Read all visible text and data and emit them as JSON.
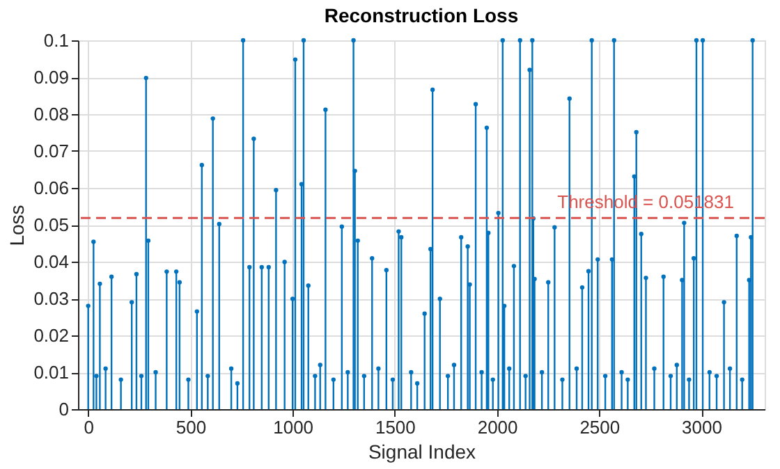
{
  "chart_data": {
    "type": "lollipop",
    "title": "Reconstruction Loss",
    "xlabel": "Signal Index",
    "ylabel": "Loss",
    "x": [
      0,
      26,
      40,
      57,
      85,
      114,
      160,
      213,
      236,
      260,
      283,
      294,
      330,
      384,
      431,
      447,
      490,
      532,
      556,
      585,
      610,
      641,
      700,
      730,
      758,
      789,
      810,
      849,
      883,
      919,
      961,
      1000,
      1013,
      1044,
      1054,
      1077,
      1110,
      1135,
      1161,
      1200,
      1241,
      1270,
      1298,
      1305,
      1319,
      1350,
      1389,
      1420,
      1459,
      1490,
      1519,
      1532,
      1580,
      1610,
      1646,
      1675,
      1685,
      1721,
      1760,
      1790,
      1825,
      1857,
      1867,
      1896,
      1925,
      1950,
      1958,
      1980,
      2007,
      2028,
      2036,
      2060,
      2083,
      2113,
      2140,
      2160,
      2173,
      2178,
      2184,
      2220,
      2251,
      2282,
      2320,
      2355,
      2390,
      2417,
      2448,
      2464,
      2493,
      2530,
      2563,
      2573,
      2610,
      2640,
      2672,
      2682,
      2706,
      2729,
      2770,
      2815,
      2850,
      2880,
      2906,
      2916,
      2940,
      2963,
      2976,
      3007,
      3040,
      3075,
      3111,
      3140,
      3173,
      3200,
      3234,
      3243,
      3251
    ],
    "series": [
      {
        "color": "#0072bd",
        "values": [
          0.028,
          0.0454,
          0.009,
          0.034,
          0.011,
          0.0359,
          0.008,
          0.029,
          0.0366,
          0.009,
          0.0898,
          0.0457,
          0.01,
          0.0373,
          0.0373,
          0.0344,
          0.008,
          0.0265,
          0.0662,
          0.009,
          0.0788,
          0.0502,
          0.011,
          0.007,
          0.1,
          0.0385,
          0.0733,
          0.0385,
          0.0385,
          0.0594,
          0.0399,
          0.0299,
          0.0948,
          0.061,
          0.1,
          0.0335,
          0.009,
          0.012,
          0.0812,
          0.008,
          0.0495,
          0.01,
          0.1,
          0.0646,
          0.0457,
          0.009,
          0.0409,
          0.011,
          0.0377,
          0.008,
          0.0482,
          0.0466,
          0.01,
          0.007,
          0.0259,
          0.0434,
          0.0866,
          0.0299,
          0.009,
          0.012,
          0.0466,
          0.0441,
          0.0338,
          0.0827,
          0.01,
          0.0763,
          0.0478,
          0.008,
          0.0532,
          0.1,
          0.028,
          0.011,
          0.0388,
          0.1,
          0.009,
          0.092,
          0.1,
          0.0517,
          0.0353,
          0.01,
          0.0344,
          0.0493,
          0.008,
          0.0842,
          0.011,
          0.033,
          0.0374,
          0.1,
          0.0406,
          0.009,
          0.0406,
          0.1,
          0.01,
          0.008,
          0.0631,
          0.0751,
          0.0475,
          0.0356,
          0.011,
          0.0359,
          0.009,
          0.012,
          0.035,
          0.0505,
          0.008,
          0.0409,
          0.1,
          0.1,
          0.01,
          0.009,
          0.029,
          0.011,
          0.047,
          0.008,
          0.035,
          0.0466,
          0.1
        ]
      }
    ],
    "xlim": [
      -50,
      3310
    ],
    "ylim": [
      0,
      0.1
    ],
    "xticks": [
      0,
      500,
      1000,
      1500,
      2000,
      2500,
      3000
    ],
    "yticks": [
      0,
      0.01,
      0.02,
      0.03,
      0.04,
      0.05,
      0.06,
      0.07,
      0.08,
      0.09,
      0.1
    ],
    "ref_lines": [
      {
        "axis": "y",
        "value": 0.051831,
        "label": "Threshold = 0.051831",
        "color": "#d9534f",
        "line_style": "dashed"
      }
    ],
    "grid": true,
    "marker": "circle"
  }
}
